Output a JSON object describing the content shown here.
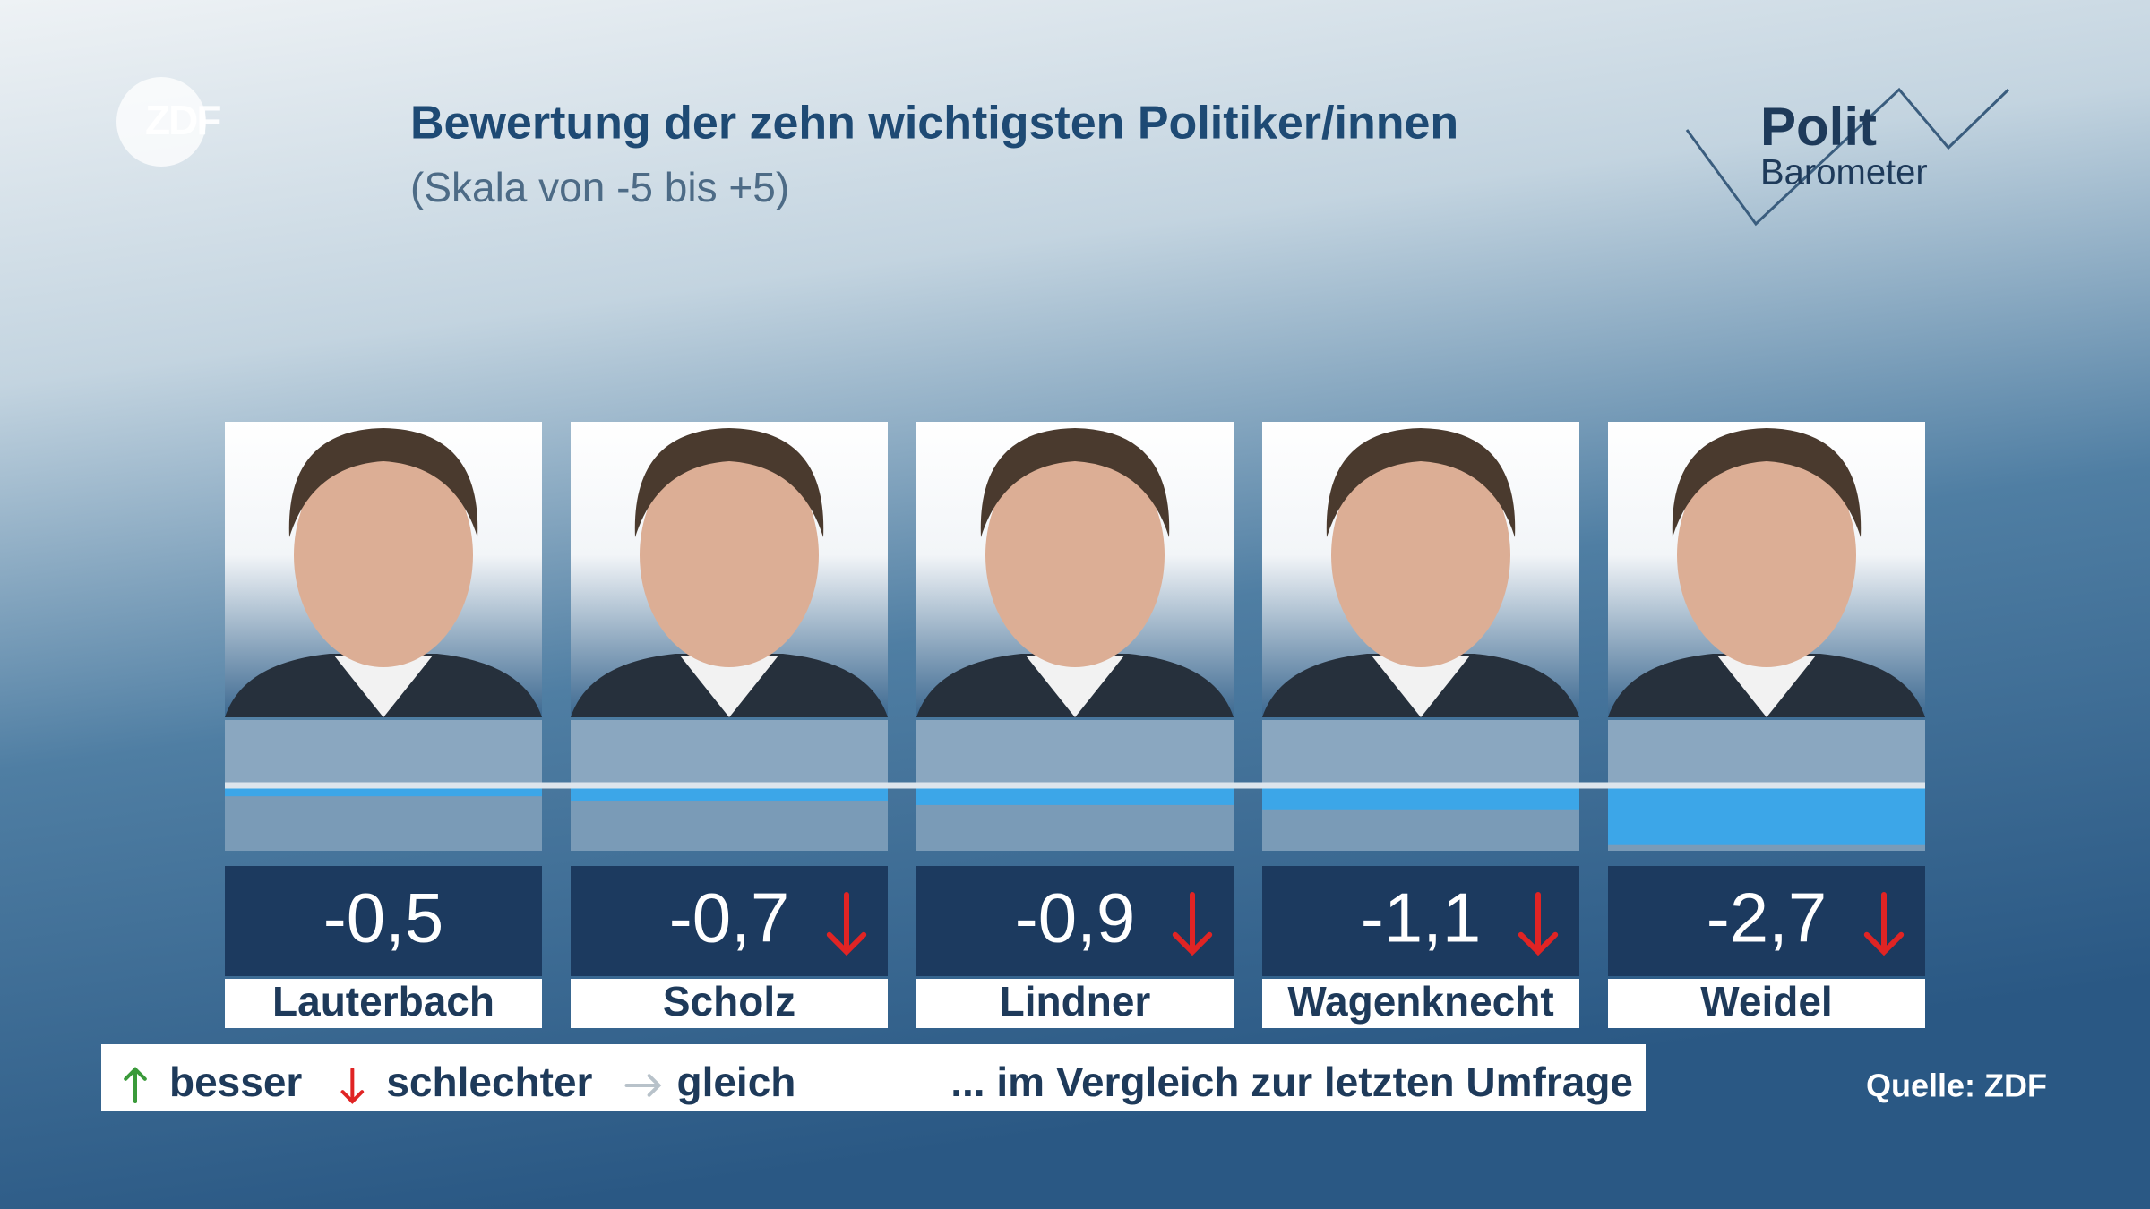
{
  "logo": {
    "brand": "ZDF",
    "show_top": "Polit",
    "show_bottom": "Barometer"
  },
  "chart_data": {
    "type": "bar",
    "title": "Bewertung der zehn wichtigsten Politiker/innen",
    "subtitle": "(Skala von -5 bis +5)",
    "categories": [
      "Lauterbach",
      "Scholz",
      "Lindner",
      "Wagenknecht",
      "Weidel"
    ],
    "values": [
      -0.5,
      -0.7,
      -0.9,
      -1.1,
      -2.7
    ],
    "value_labels": [
      "-0,5",
      "-0,7",
      "-0,9",
      "-1,1",
      "-2,7"
    ],
    "trends": [
      null,
      "down",
      "down",
      "down",
      "down"
    ],
    "color": "#3ca6e8",
    "ylim": [
      -3,
      3
    ],
    "legend": {
      "items": [
        {
          "label": "besser",
          "direction": "up",
          "color": "#3a9a3a"
        },
        {
          "label": "schlechter",
          "direction": "down",
          "color": "#e02424"
        },
        {
          "label": "gleich",
          "direction": "right",
          "color": "#b8c2ca"
        }
      ],
      "note": "... im Vergleich zur letzten Umfrage"
    },
    "source": "Quelle: ZDF"
  }
}
